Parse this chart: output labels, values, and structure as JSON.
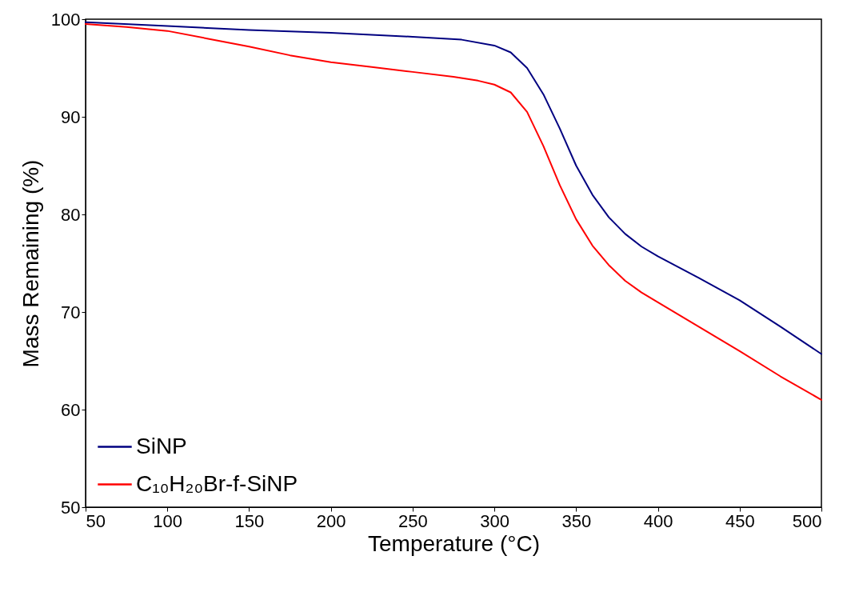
{
  "chart_data": {
    "type": "line",
    "xlabel": "Temperature (°C)",
    "ylabel": "Mass Remaining (%)",
    "xlim": [
      50,
      500
    ],
    "ylim": [
      50,
      100
    ],
    "xticks": [
      50,
      100,
      150,
      200,
      250,
      300,
      350,
      400,
      450,
      500
    ],
    "yticks": [
      50,
      60,
      70,
      80,
      90,
      100
    ],
    "grid": false,
    "legend": "bottom left",
    "marker": "none",
    "line_style": "solid",
    "series": [
      {
        "name": "SiNP",
        "color": "#000080",
        "x": [
          50,
          100,
          150,
          200,
          250,
          280,
          300,
          310,
          320,
          330,
          340,
          350,
          360,
          370,
          380,
          390,
          400,
          425,
          450,
          475,
          500
        ],
        "values": [
          99.7,
          99.3,
          98.9,
          98.6,
          98.2,
          97.9,
          97.3,
          96.6,
          95.0,
          92.3,
          88.8,
          85.0,
          82.0,
          79.7,
          78.0,
          76.7,
          75.7,
          73.5,
          71.2,
          68.5,
          65.7
        ]
      },
      {
        "name": "C₁₀H₂₀Br-f-SiNP",
        "color": "#ff0000",
        "x": [
          50,
          75,
          100,
          125,
          150,
          175,
          200,
          225,
          250,
          275,
          290,
          300,
          310,
          320,
          330,
          340,
          350,
          360,
          370,
          380,
          390,
          400,
          425,
          450,
          475,
          500
        ],
        "values": [
          99.5,
          99.2,
          98.8,
          98.0,
          97.2,
          96.3,
          95.6,
          95.1,
          94.6,
          94.1,
          93.7,
          93.3,
          92.5,
          90.5,
          87.0,
          83.0,
          79.5,
          76.8,
          74.8,
          73.2,
          72.0,
          71.0,
          68.5,
          66.0,
          63.4,
          61.0
        ]
      }
    ]
  }
}
